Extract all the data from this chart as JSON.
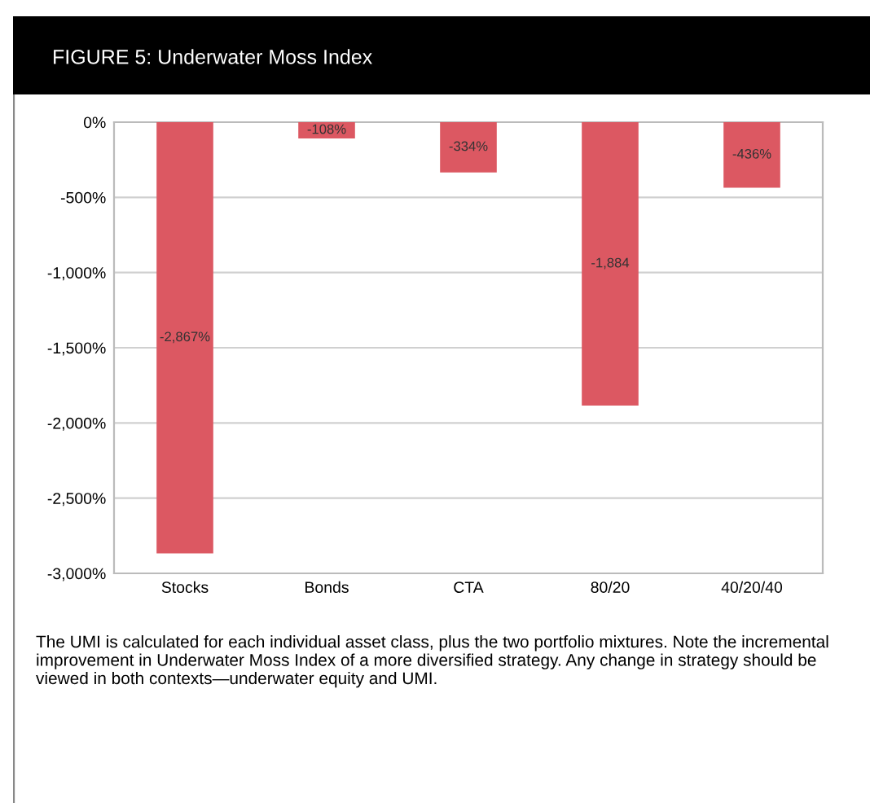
{
  "chart_data": {
    "type": "bar",
    "title": "FIGURE 5: Underwater Moss Index",
    "categories": [
      "Stocks",
      "Bonds",
      "CTA",
      "80/20",
      "40/20/40"
    ],
    "values": [
      -2867,
      -108,
      -334,
      -1884,
      -436
    ],
    "value_labels": [
      "-2,867%",
      "-108%",
      "-334%",
      "-1,884",
      "-436%"
    ],
    "color": "#dc5862",
    "ylim": [
      -3000,
      0
    ],
    "yticks": [
      {
        "value": 0,
        "label": "0%"
      },
      {
        "value": -500,
        "label": "-500%"
      },
      {
        "value": -1000,
        "label": "-1,000%"
      },
      {
        "value": -1500,
        "label": "-1,500%"
      },
      {
        "value": -2000,
        "label": "-2,000%"
      },
      {
        "value": -2500,
        "label": "-2,500%"
      },
      {
        "value": -3000,
        "label": "-3,000%"
      }
    ],
    "grid": "y",
    "annotations": [
      "The UMI is calculated for each individual asset class, plus the two portfolio mixtures. Note the incremental improvement in Underwater Moss Index of a more diversified strategy. Any change in strategy should be viewed in both contexts—underwater equity and UMI."
    ]
  }
}
